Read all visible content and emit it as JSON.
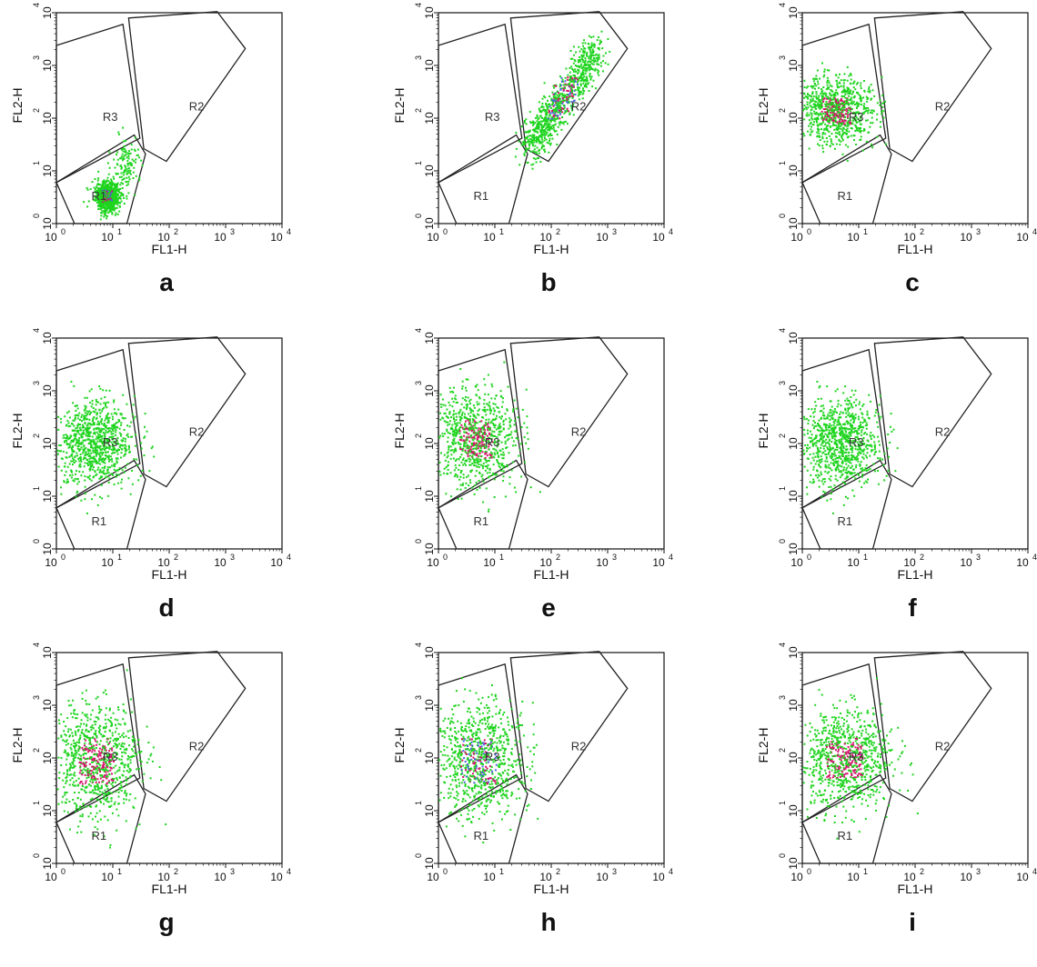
{
  "figure": {
    "panels": [
      "a",
      "b",
      "c",
      "d",
      "e",
      "f",
      "g",
      "h",
      "i"
    ],
    "xlabel": "FL1-H",
    "ylabel": "FL2-H",
    "tick_base": "10",
    "tick_exponents": [
      "0",
      "1",
      "2",
      "3",
      "4"
    ],
    "region_labels": [
      "R1",
      "R2",
      "R3"
    ]
  },
  "chart_data": [
    {
      "panel": "a",
      "type": "scatter",
      "xlabel": "FL1-H",
      "ylabel": "FL2-H",
      "xscale": "log",
      "yscale": "log",
      "xlim": [
        1,
        10000
      ],
      "ylim": [
        1,
        10000
      ],
      "regions": [
        "R1",
        "R2",
        "R3"
      ],
      "clusters": [
        {
          "x": [
            5,
            12
          ],
          "y": [
            2,
            6
          ],
          "density": "high",
          "colors": [
            "green",
            "magenta",
            "blue"
          ]
        },
        {
          "x": [
            10,
            30
          ],
          "y": [
            5,
            40
          ],
          "density": "low",
          "colors": [
            "green"
          ]
        }
      ]
    },
    {
      "panel": "b",
      "type": "scatter",
      "xlabel": "FL1-H",
      "ylabel": "FL2-H",
      "xscale": "log",
      "yscale": "log",
      "xlim": [
        1,
        10000
      ],
      "ylim": [
        1,
        10000
      ],
      "regions": [
        "R1",
        "R2",
        "R3"
      ],
      "clusters": [
        {
          "x": [
            40,
            600
          ],
          "y": [
            30,
            2000
          ],
          "density": "high",
          "colors": [
            "green",
            "magenta",
            "blue"
          ],
          "shape": "diagonal"
        }
      ]
    },
    {
      "panel": "c",
      "type": "scatter",
      "xlabel": "FL1-H",
      "ylabel": "FL2-H",
      "xscale": "log",
      "yscale": "log",
      "xlim": [
        1,
        10000
      ],
      "ylim": [
        1,
        10000
      ],
      "regions": [
        "R1",
        "R2",
        "R3"
      ],
      "clusters": [
        {
          "x": [
            1,
            15
          ],
          "y": [
            40,
            500
          ],
          "density": "high",
          "colors": [
            "green",
            "magenta"
          ]
        }
      ]
    },
    {
      "panel": "d",
      "type": "scatter",
      "xlabel": "FL1-H",
      "ylabel": "FL2-H",
      "xscale": "log",
      "yscale": "log",
      "xlim": [
        1,
        10000
      ],
      "ylim": [
        1,
        10000
      ],
      "regions": [
        "R1",
        "R2",
        "R3"
      ],
      "clusters": [
        {
          "x": [
            1,
            20
          ],
          "y": [
            20,
            600
          ],
          "density": "high",
          "colors": [
            "green"
          ]
        }
      ]
    },
    {
      "panel": "e",
      "type": "scatter",
      "xlabel": "FL1-H",
      "ylabel": "FL2-H",
      "xscale": "log",
      "yscale": "log",
      "xlim": [
        1,
        10000
      ],
      "ylim": [
        1,
        10000
      ],
      "regions": [
        "R1",
        "R2",
        "R3"
      ],
      "clusters": [
        {
          "x": [
            1,
            20
          ],
          "y": [
            20,
            800
          ],
          "density": "high",
          "colors": [
            "green",
            "magenta"
          ]
        }
      ]
    },
    {
      "panel": "f",
      "type": "scatter",
      "xlabel": "FL1-H",
      "ylabel": "FL2-H",
      "xscale": "log",
      "yscale": "log",
      "xlim": [
        1,
        10000
      ],
      "ylim": [
        1,
        10000
      ],
      "regions": [
        "R1",
        "R2",
        "R3"
      ],
      "clusters": [
        {
          "x": [
            1,
            20
          ],
          "y": [
            20,
            600
          ],
          "density": "high",
          "colors": [
            "green"
          ]
        }
      ]
    },
    {
      "panel": "g",
      "type": "scatter",
      "xlabel": "FL1-H",
      "ylabel": "FL2-H",
      "xscale": "log",
      "yscale": "log",
      "xlim": [
        1,
        10000
      ],
      "ylim": [
        1,
        10000
      ],
      "regions": [
        "R1",
        "R2",
        "R3"
      ],
      "clusters": [
        {
          "x": [
            1,
            25
          ],
          "y": [
            10,
            800
          ],
          "density": "high",
          "colors": [
            "green",
            "magenta"
          ]
        }
      ]
    },
    {
      "panel": "h",
      "type": "scatter",
      "xlabel": "FL1-H",
      "ylabel": "FL2-H",
      "xscale": "log",
      "yscale": "log",
      "xlim": [
        1,
        10000
      ],
      "ylim": [
        1,
        10000
      ],
      "regions": [
        "R1",
        "R2",
        "R3"
      ],
      "clusters": [
        {
          "x": [
            1,
            25
          ],
          "y": [
            10,
            800
          ],
          "density": "high",
          "colors": [
            "green",
            "magenta",
            "blue"
          ]
        }
      ]
    },
    {
      "panel": "i",
      "type": "scatter",
      "xlabel": "FL1-H",
      "ylabel": "FL2-H",
      "xscale": "log",
      "yscale": "log",
      "xlim": [
        1,
        10000
      ],
      "ylim": [
        1,
        10000
      ],
      "regions": [
        "R1",
        "R2",
        "R3"
      ],
      "clusters": [
        {
          "x": [
            1,
            30
          ],
          "y": [
            15,
            700
          ],
          "density": "high",
          "colors": [
            "green",
            "magenta"
          ]
        }
      ]
    }
  ],
  "colors": {
    "green": "#1fd41f",
    "magenta": "#d4126a",
    "blue": "#4a64d8",
    "gate": "#222222"
  }
}
